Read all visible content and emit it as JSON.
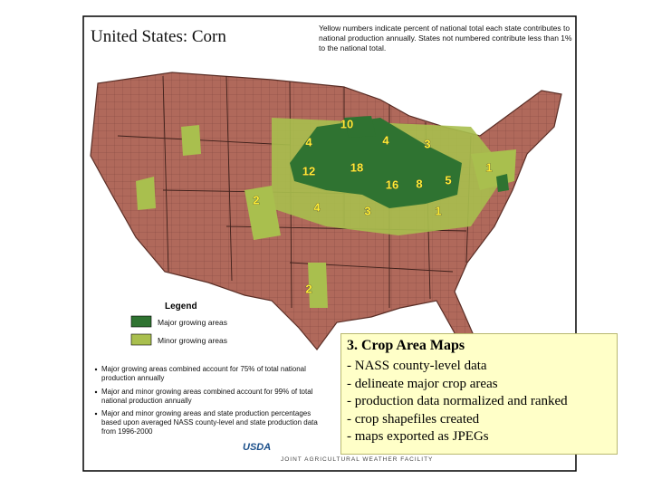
{
  "map": {
    "title": "United States:  Corn",
    "note": "Yellow numbers indicate percent of national total each state contributes to national production annually.  States not numbered contribute less than 1% to the national total.",
    "state_labels": [
      10,
      4,
      4,
      3,
      1,
      12,
      18,
      16,
      8,
      5,
      2,
      4,
      3,
      1,
      2
    ],
    "legend": {
      "title": "Legend",
      "items": [
        "Major growing areas",
        "Minor growing areas"
      ]
    },
    "footnotes": [
      "Major growing areas combined account for 75% of total national production annually",
      "Major and minor growing areas combined account for 99% of total national production annually",
      "Major and minor growing areas and state production percentages based upon averaged NASS county-level and state production data from 1996-2000"
    ],
    "logo": "USDA",
    "credit": "JOINT AGRICULTURAL WEATHER FACILITY"
  },
  "text_box": {
    "title": "3.  Crop Area Maps",
    "bullets": [
      "- NASS county-level data",
      "- delineate major crop areas",
      "- production data normalized and ranked",
      "- crop shapefiles created",
      "- maps exported as JPEGs"
    ]
  }
}
